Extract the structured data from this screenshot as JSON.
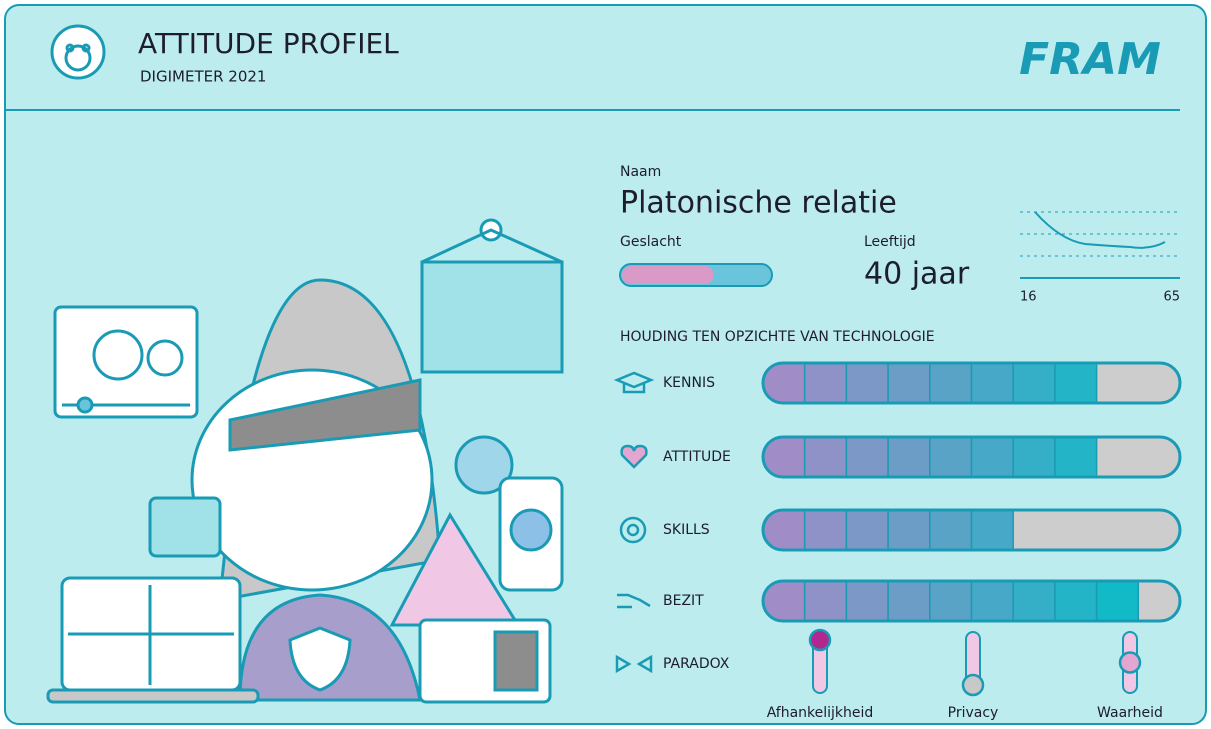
{
  "header": {
    "title": "ATTITUDE PROFIEL",
    "subtitle": "DIGIMETER 2021",
    "logo_text": "FRAM"
  },
  "profile": {
    "name_label": "Naam",
    "name": "Platonische relatie",
    "gender_label": "Geslacht",
    "gender_share": 62,
    "age_label": "Leeftijd",
    "age": "40 jaar",
    "age_axis": [
      "16",
      "65"
    ]
  },
  "attitude": {
    "title": "HOUDING TEN OPZICHTE VAN TECHNOLOGIE",
    "rows": [
      {
        "label": "KENNIS",
        "value": 8
      },
      {
        "label": "ATTITUDE",
        "value": 8
      },
      {
        "label": "SKILLS",
        "value": 6
      },
      {
        "label": "BEZIT",
        "value": 9
      }
    ]
  },
  "paradox": {
    "label": "PARADOX",
    "items": [
      {
        "label": "Afhankelijkheid",
        "value": 100,
        "color": "#b0288f"
      },
      {
        "label": "Privacy",
        "value": 0,
        "color": "#c8c8c8"
      },
      {
        "label": "Waarheid",
        "value": 50,
        "color": "#e2a6d0"
      }
    ]
  }
}
